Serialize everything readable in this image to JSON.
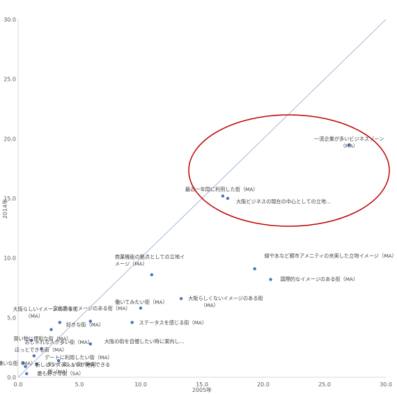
{
  "chart_data": {
    "type": "scatter",
    "xlabel": "2005年",
    "ylabel": "2014年",
    "xlim": [
      0,
      30
    ],
    "ylim": [
      0,
      30
    ],
    "x_ticks": [
      "0.0",
      "5.0",
      "10.0",
      "15.0",
      "20.0",
      "25.0",
      "30.0"
    ],
    "y_ticks": [
      "0.0",
      "5.0",
      "10.0",
      "15.0",
      "20.0",
      "25.0",
      "30.0"
    ],
    "grid": false,
    "legend": "none",
    "reference_line": {
      "x": [
        0,
        30
      ],
      "y": [
        0,
        30
      ]
    },
    "point_color": "#4472c4",
    "line_color": "#a6b8d3",
    "highlight_color": "#c00000",
    "points": [
      {
        "x": 27.0,
        "y": 19.5,
        "label": [
          "一流企業が多いビジネスゾーン",
          "（MA）"
        ]
      },
      {
        "x": 16.7,
        "y": 15.2,
        "label": [
          "最近一年間に利用した街（MA）"
        ]
      },
      {
        "x": 17.1,
        "y": 15.0,
        "label": [
          "大阪ビジネスの現在の中心としての立地…"
        ]
      },
      {
        "x": 19.3,
        "y": 9.1,
        "label": [
          "緑や水など都市アメニティの充実した立地イメージ（MA）"
        ]
      },
      {
        "x": 20.6,
        "y": 8.2,
        "label": [
          "国際的なイメージのある街（MA）"
        ]
      },
      {
        "x": 10.9,
        "y": 8.6,
        "label": [
          "商業機能の拠点としての立地イ",
          "メージ（MA）"
        ]
      },
      {
        "x": 13.3,
        "y": 6.6,
        "label": [
          "大阪らしくないイメージのある街",
          "（MA）"
        ]
      },
      {
        "x": 10.0,
        "y": 5.8,
        "label": [
          "働いてみたい街（MA）"
        ]
      },
      {
        "x": 5.9,
        "y": 4.7,
        "label": [
          "文化的なイメージのある街（MA）"
        ]
      },
      {
        "x": 3.4,
        "y": 4.6,
        "label": [
          "好きな街（MA）"
        ]
      },
      {
        "x": 2.7,
        "y": 4.0,
        "label": [
          "大阪らしいイメージのある街",
          "（MA）"
        ]
      },
      {
        "x": 9.3,
        "y": 4.6,
        "label": [
          "ステータスを感じる街（MA）"
        ]
      },
      {
        "x": 1.1,
        "y": 3.1,
        "label": [
          "買い物に便利な街（MA）"
        ]
      },
      {
        "x": 5.9,
        "y": 2.8,
        "label": [
          "大阪の街を自慢したい時に案内し…"
        ]
      },
      {
        "x": 1.9,
        "y": 2.4,
        "label": [
          "おしゃれな人が多い街（MA）"
        ]
      },
      {
        "x": 1.3,
        "y": 1.8,
        "label": [
          "ほっとできる街（MA）"
        ]
      },
      {
        "x": 3.3,
        "y": 1.4,
        "label": [
          "デートに利用したい街（MA）"
        ]
      },
      {
        "x": 0.4,
        "y": 1.2,
        "label": [
          "嫌いな街（MA）"
        ]
      },
      {
        "x": 1.5,
        "y": 1.1,
        "label": [
          "歩いて楽しい街（MA）"
        ]
      },
      {
        "x": 0.6,
        "y": 0.9,
        "label": [
          "新しいファッションが発見できる",
          "街（MA）"
        ]
      },
      {
        "x": 0.7,
        "y": 0.3,
        "label": [
          "最も好きな街（SA）"
        ]
      }
    ]
  }
}
